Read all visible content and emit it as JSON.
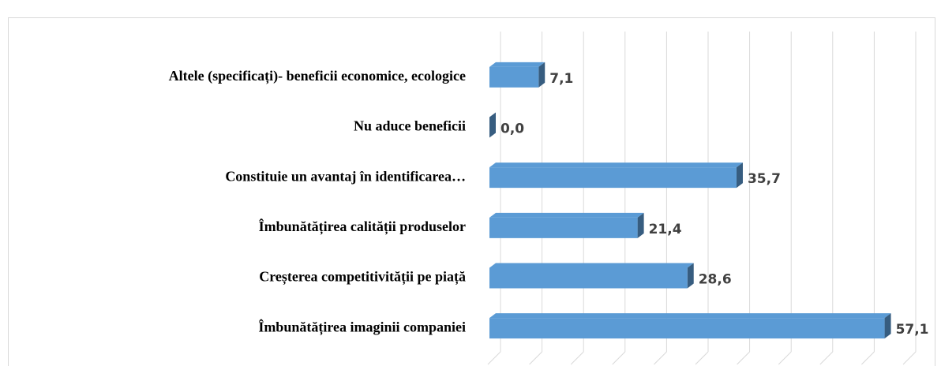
{
  "chart_data": {
    "type": "bar3d_horizontal",
    "categories": [
      "Altele (specificați)- beneficii economice, ecologice",
      "Nu aduce beneficii",
      "Constituie un avantaj în identificarea…",
      "Îmbunătățirea calității produselor",
      "Creșterea competitivității pe piață",
      "Îmbunătățirea imaginii companiei"
    ],
    "values": [
      7.1,
      0.0,
      35.7,
      21.4,
      28.6,
      57.1
    ],
    "value_labels": [
      "7,1",
      "0,0",
      "35,7",
      "21,4",
      "28,6",
      "57,1"
    ],
    "color": "#5b9bd5",
    "xlim": [
      0,
      60
    ],
    "xticks": [
      0,
      6,
      12,
      18,
      24,
      30,
      36,
      42,
      48,
      54,
      60
    ],
    "grid": true
  }
}
